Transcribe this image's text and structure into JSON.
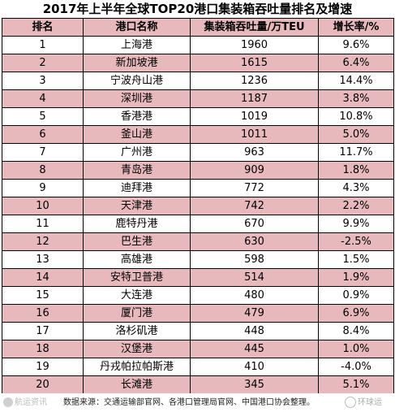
{
  "title": "2017年上半年全球TOP20港口集装箱吞吐量排名及增速",
  "headers": {
    "rank": "排名",
    "port": "港口名称",
    "throughput": "集装箱吞吐量/万TEU",
    "growth": "增长率/%"
  },
  "rows": [
    {
      "rank": "1",
      "port": "上海港",
      "throughput": "1960",
      "growth": "9.6%"
    },
    {
      "rank": "2",
      "port": "新加坡港",
      "throughput": "1615",
      "growth": "6.4%"
    },
    {
      "rank": "3",
      "port": "宁波舟山港",
      "throughput": "1236",
      "growth": "14.4%"
    },
    {
      "rank": "4",
      "port": "深圳港",
      "throughput": "1187",
      "growth": "3.8%"
    },
    {
      "rank": "5",
      "port": "香港港",
      "throughput": "1019",
      "growth": "10.8%"
    },
    {
      "rank": "6",
      "port": "釜山港",
      "throughput": "1011",
      "growth": "5.0%"
    },
    {
      "rank": "7",
      "port": "广州港",
      "throughput": "963",
      "growth": "11.7%"
    },
    {
      "rank": "8",
      "port": "青岛港",
      "throughput": "909",
      "growth": "1.8%"
    },
    {
      "rank": "9",
      "port": "迪拜港",
      "throughput": "772",
      "growth": "4.3%"
    },
    {
      "rank": "10",
      "port": "天津港",
      "throughput": "742",
      "growth": "2.2%"
    },
    {
      "rank": "11",
      "port": "鹿特丹港",
      "throughput": "670",
      "growth": "9.9%"
    },
    {
      "rank": "12",
      "port": "巴生港",
      "throughput": "630",
      "growth": "-2.5%"
    },
    {
      "rank": "13",
      "port": "高雄港",
      "throughput": "598",
      "growth": "1.5%"
    },
    {
      "rank": "14",
      "port": "安特卫普港",
      "throughput": "514",
      "growth": "1.9%"
    },
    {
      "rank": "15",
      "port": "大连港",
      "throughput": "480",
      "growth": "0.9%"
    },
    {
      "rank": "16",
      "port": "厦门港",
      "throughput": "479",
      "growth": "6.9%"
    },
    {
      "rank": "17",
      "port": "洛杉矶港",
      "throughput": "448",
      "growth": "8.4%"
    },
    {
      "rank": "18",
      "port": "汉堡港",
      "throughput": "445",
      "growth": "1.0%"
    },
    {
      "rank": "19",
      "port": "丹戎帕拉帕斯港",
      "throughput": "410",
      "growth": "-4.0%"
    },
    {
      "rank": "20",
      "port": "长滩港",
      "throughput": "345",
      "growth": "5.1%"
    }
  ],
  "footer": {
    "source": "数据来源：交通运输部官网、各港口管理局官网、中国港口协会整理。",
    "watermark_left": "航运资讯",
    "watermark_right": "环球运"
  },
  "colors": {
    "header_bg": "#e7b9bd",
    "even_row_bg": "#e7b9bd",
    "odd_row_bg": "#ffffff",
    "border": "#000000"
  }
}
